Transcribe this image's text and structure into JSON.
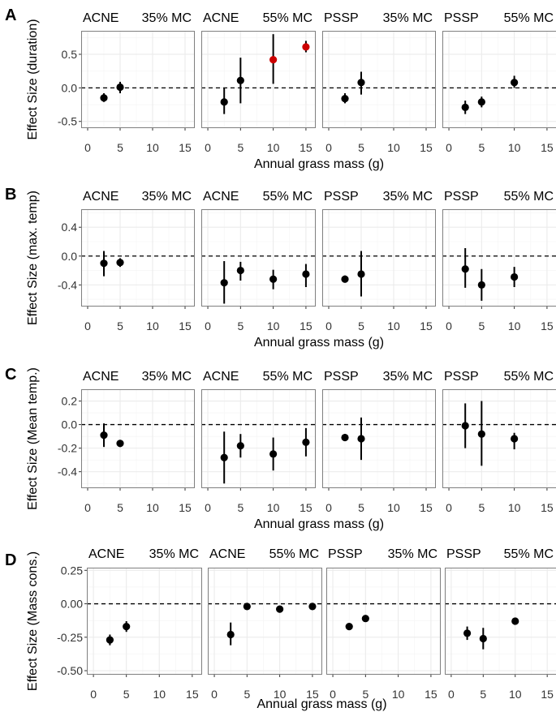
{
  "figure": {
    "x_label": "Annual grass mass (g)",
    "x_ticks": [
      0,
      5,
      10,
      15
    ],
    "xlim": [
      -1,
      16.5
    ],
    "panels": [
      {
        "species": "ACNE",
        "condition": "35% MC"
      },
      {
        "species": "ACNE",
        "condition": "55% MC"
      },
      {
        "species": "PSSP",
        "condition": "35% MC"
      },
      {
        "species": "PSSP",
        "condition": "55% MC"
      }
    ]
  },
  "colors": {
    "point": "#000000",
    "highlight": "#cc0000",
    "grid": "#ebebeb",
    "border": "#7f7f7f",
    "text": "#000000"
  },
  "chart_data": [
    {
      "type": "scatter",
      "letter": "A",
      "ylabel": "Effect Size (duration)",
      "ylim": [
        -0.6,
        0.85
      ],
      "y_ticks": [
        -0.5,
        0.0,
        0.5
      ],
      "y_tick_labels": [
        "-0.5",
        "0.0",
        "0.5"
      ],
      "reference_line": 0,
      "series": [
        {
          "name": "ACNE 35% MC",
          "points": [
            {
              "x": 2.5,
              "y": -0.15,
              "lo": -0.21,
              "hi": -0.08
            },
            {
              "x": 5,
              "y": 0.01,
              "lo": -0.08,
              "hi": 0.09
            }
          ]
        },
        {
          "name": "ACNE 55% MC",
          "points": [
            {
              "x": 2.5,
              "y": -0.21,
              "lo": -0.39,
              "hi": 0.0
            },
            {
              "x": 5,
              "y": 0.11,
              "lo": -0.23,
              "hi": 0.45
            },
            {
              "x": 10,
              "y": 0.42,
              "lo": 0.06,
              "hi": 0.8,
              "highlight": true
            },
            {
              "x": 15,
              "y": 0.61,
              "lo": 0.53,
              "hi": 0.7,
              "highlight": true
            }
          ]
        },
        {
          "name": "PSSP 35% MC",
          "points": [
            {
              "x": 2.5,
              "y": -0.16,
              "lo": -0.23,
              "hi": -0.08
            },
            {
              "x": 5,
              "y": 0.08,
              "lo": -0.1,
              "hi": 0.24
            }
          ]
        },
        {
          "name": "PSSP 55% MC",
          "points": [
            {
              "x": 2.5,
              "y": -0.29,
              "lo": -0.39,
              "hi": -0.19
            },
            {
              "x": 5,
              "y": -0.21,
              "lo": -0.29,
              "hi": -0.13
            },
            {
              "x": 10,
              "y": 0.08,
              "lo": 0.0,
              "hi": 0.18
            }
          ]
        }
      ]
    },
    {
      "type": "scatter",
      "letter": "B",
      "ylabel": "Effect Size (max. temp)",
      "ylim": [
        -0.7,
        0.65
      ],
      "y_ticks": [
        -0.4,
        0.0,
        0.4
      ],
      "y_tick_labels": [
        "-0.4",
        "0.0",
        "0.4"
      ],
      "reference_line": 0,
      "series": [
        {
          "name": "ACNE 35% MC",
          "points": [
            {
              "x": 2.5,
              "y": -0.1,
              "lo": -0.28,
              "hi": 0.07
            },
            {
              "x": 5,
              "y": -0.09,
              "lo": -0.15,
              "hi": -0.03
            }
          ]
        },
        {
          "name": "ACNE 55% MC",
          "points": [
            {
              "x": 2.5,
              "y": -0.37,
              "lo": -0.66,
              "hi": -0.07
            },
            {
              "x": 5,
              "y": -0.2,
              "lo": -0.34,
              "hi": -0.08
            },
            {
              "x": 10,
              "y": -0.32,
              "lo": -0.46,
              "hi": -0.19
            },
            {
              "x": 15,
              "y": -0.25,
              "lo": -0.43,
              "hi": -0.11
            }
          ]
        },
        {
          "name": "PSSP 35% MC",
          "points": [
            {
              "x": 2.5,
              "y": -0.32,
              "lo": -0.36,
              "hi": -0.27
            },
            {
              "x": 5,
              "y": -0.25,
              "lo": -0.56,
              "hi": 0.07
            }
          ]
        },
        {
          "name": "PSSP 55% MC",
          "points": [
            {
              "x": 2.5,
              "y": -0.18,
              "lo": -0.44,
              "hi": 0.11
            },
            {
              "x": 5,
              "y": -0.4,
              "lo": -0.62,
              "hi": -0.18
            },
            {
              "x": 10,
              "y": -0.29,
              "lo": -0.43,
              "hi": -0.15
            }
          ]
        }
      ]
    },
    {
      "type": "scatter",
      "letter": "C",
      "ylabel": "Effect Size (Mean temp.)",
      "ylim": [
        -0.54,
        0.3
      ],
      "y_ticks": [
        -0.4,
        -0.2,
        0.0,
        0.2
      ],
      "y_tick_labels": [
        "-0.4",
        "-0.2",
        "0.0",
        "0.2"
      ],
      "reference_line": 0,
      "series": [
        {
          "name": "ACNE 35% MC",
          "points": [
            {
              "x": 2.5,
              "y": -0.09,
              "lo": -0.19,
              "hi": 0.01
            },
            {
              "x": 5,
              "y": -0.16,
              "lo": -0.19,
              "hi": -0.13
            }
          ]
        },
        {
          "name": "ACNE 55% MC",
          "points": [
            {
              "x": 2.5,
              "y": -0.28,
              "lo": -0.5,
              "hi": -0.06
            },
            {
              "x": 5,
              "y": -0.18,
              "lo": -0.28,
              "hi": -0.08
            },
            {
              "x": 10,
              "y": -0.25,
              "lo": -0.39,
              "hi": -0.11
            },
            {
              "x": 15,
              "y": -0.15,
              "lo": -0.27,
              "hi": -0.03
            }
          ]
        },
        {
          "name": "PSSP 35% MC",
          "points": [
            {
              "x": 2.5,
              "y": -0.11,
              "lo": -0.13,
              "hi": -0.08
            },
            {
              "x": 5,
              "y": -0.12,
              "lo": -0.3,
              "hi": 0.06
            }
          ]
        },
        {
          "name": "PSSP 55% MC",
          "points": [
            {
              "x": 2.5,
              "y": -0.01,
              "lo": -0.2,
              "hi": 0.18
            },
            {
              "x": 5,
              "y": -0.08,
              "lo": -0.35,
              "hi": 0.2
            },
            {
              "x": 10,
              "y": -0.12,
              "lo": -0.21,
              "hi": -0.07
            }
          ]
        }
      ]
    },
    {
      "type": "scatter",
      "letter": "D",
      "ylabel": "Effect Size (Mass cons.)",
      "ylim": [
        -0.53,
        0.27
      ],
      "y_ticks": [
        -0.5,
        -0.25,
        0.0,
        0.25
      ],
      "y_tick_labels": [
        "-0.50",
        "-0.25",
        "0.00",
        "0.25"
      ],
      "reference_line": 0,
      "series": [
        {
          "name": "ACNE 35% MC",
          "points": [
            {
              "x": 2.5,
              "y": -0.27,
              "lo": -0.31,
              "hi": -0.23
            },
            {
              "x": 5,
              "y": -0.17,
              "lo": -0.21,
              "hi": -0.13
            }
          ]
        },
        {
          "name": "ACNE 55% MC",
          "points": [
            {
              "x": 2.5,
              "y": -0.23,
              "lo": -0.31,
              "hi": -0.14
            },
            {
              "x": 5,
              "y": -0.02,
              "lo": -0.04,
              "hi": 0.0
            },
            {
              "x": 10,
              "y": -0.04,
              "lo": -0.06,
              "hi": -0.02
            },
            {
              "x": 15,
              "y": -0.02,
              "lo": -0.03,
              "hi": -0.01
            }
          ]
        },
        {
          "name": "PSSP 35% MC",
          "points": [
            {
              "x": 2.5,
              "y": -0.17,
              "lo": -0.18,
              "hi": -0.15
            },
            {
              "x": 5,
              "y": -0.11,
              "lo": -0.12,
              "hi": -0.1
            }
          ]
        },
        {
          "name": "PSSP 55% MC",
          "points": [
            {
              "x": 2.5,
              "y": -0.22,
              "lo": -0.27,
              "hi": -0.17
            },
            {
              "x": 5,
              "y": -0.26,
              "lo": -0.34,
              "hi": -0.18
            },
            {
              "x": 10,
              "y": -0.13,
              "lo": -0.15,
              "hi": -0.12
            }
          ]
        }
      ]
    }
  ]
}
